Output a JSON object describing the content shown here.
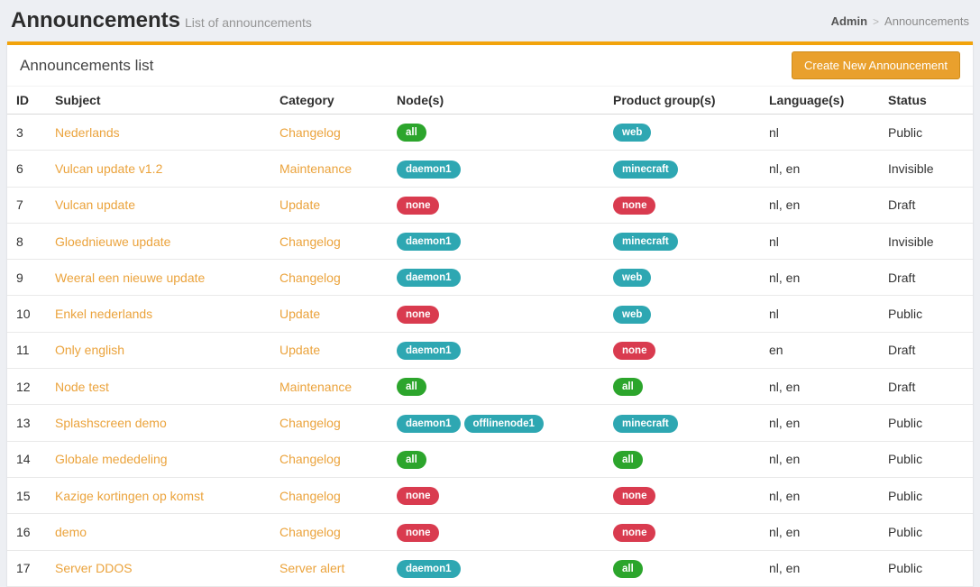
{
  "page": {
    "title": "Announcements",
    "subtitle": "List of announcements",
    "breadcrumb": {
      "root": "Admin",
      "separator": ">",
      "current": "Announcements"
    }
  },
  "panel": {
    "title": "Announcements list",
    "create_button_label": "Create New Announcement"
  },
  "table": {
    "headers": [
      "ID",
      "Subject",
      "Category",
      "Node(s)",
      "Product group(s)",
      "Language(s)",
      "Status"
    ],
    "rows": [
      {
        "id": "3",
        "subject": "Nederlands",
        "category": "Changelog",
        "nodes": [
          {
            "label": "all",
            "color": "green"
          }
        ],
        "product_groups": [
          {
            "label": "web",
            "color": "teal"
          }
        ],
        "languages": "nl",
        "status": "Public"
      },
      {
        "id": "6",
        "subject": "Vulcan update v1.2",
        "category": "Maintenance",
        "nodes": [
          {
            "label": "daemon1",
            "color": "teal"
          }
        ],
        "product_groups": [
          {
            "label": "minecraft",
            "color": "teal"
          }
        ],
        "languages": "nl, en",
        "status": "Invisible"
      },
      {
        "id": "7",
        "subject": "Vulcan update",
        "category": "Update",
        "nodes": [
          {
            "label": "none",
            "color": "red"
          }
        ],
        "product_groups": [
          {
            "label": "none",
            "color": "red"
          }
        ],
        "languages": "nl, en",
        "status": "Draft"
      },
      {
        "id": "8",
        "subject": "Gloednieuwe update",
        "category": "Changelog",
        "nodes": [
          {
            "label": "daemon1",
            "color": "teal"
          }
        ],
        "product_groups": [
          {
            "label": "minecraft",
            "color": "teal"
          }
        ],
        "languages": "nl",
        "status": "Invisible"
      },
      {
        "id": "9",
        "subject": "Weeral een nieuwe update",
        "category": "Changelog",
        "nodes": [
          {
            "label": "daemon1",
            "color": "teal"
          }
        ],
        "product_groups": [
          {
            "label": "web",
            "color": "teal"
          }
        ],
        "languages": "nl, en",
        "status": "Draft"
      },
      {
        "id": "10",
        "subject": "Enkel nederlands",
        "category": "Update",
        "nodes": [
          {
            "label": "none",
            "color": "red"
          }
        ],
        "product_groups": [
          {
            "label": "web",
            "color": "teal"
          }
        ],
        "languages": "nl",
        "status": "Public"
      },
      {
        "id": "11",
        "subject": "Only english",
        "category": "Update",
        "nodes": [
          {
            "label": "daemon1",
            "color": "teal"
          }
        ],
        "product_groups": [
          {
            "label": "none",
            "color": "red"
          }
        ],
        "languages": "en",
        "status": "Draft"
      },
      {
        "id": "12",
        "subject": "Node test",
        "category": "Maintenance",
        "nodes": [
          {
            "label": "all",
            "color": "green"
          }
        ],
        "product_groups": [
          {
            "label": "all",
            "color": "green"
          }
        ],
        "languages": "nl, en",
        "status": "Draft"
      },
      {
        "id": "13",
        "subject": "Splashscreen demo",
        "category": "Changelog",
        "nodes": [
          {
            "label": "daemon1",
            "color": "teal"
          },
          {
            "label": "offlinenode1",
            "color": "teal"
          }
        ],
        "product_groups": [
          {
            "label": "minecraft",
            "color": "teal"
          }
        ],
        "languages": "nl, en",
        "status": "Public"
      },
      {
        "id": "14",
        "subject": "Globale mededeling",
        "category": "Changelog",
        "nodes": [
          {
            "label": "all",
            "color": "green"
          }
        ],
        "product_groups": [
          {
            "label": "all",
            "color": "green"
          }
        ],
        "languages": "nl, en",
        "status": "Public"
      },
      {
        "id": "15",
        "subject": "Kazige kortingen op komst",
        "category": "Changelog",
        "nodes": [
          {
            "label": "none",
            "color": "red"
          }
        ],
        "product_groups": [
          {
            "label": "none",
            "color": "red"
          }
        ],
        "languages": "nl, en",
        "status": "Public"
      },
      {
        "id": "16",
        "subject": "demo",
        "category": "Changelog",
        "nodes": [
          {
            "label": "none",
            "color": "red"
          }
        ],
        "product_groups": [
          {
            "label": "none",
            "color": "red"
          }
        ],
        "languages": "nl, en",
        "status": "Public"
      },
      {
        "id": "17",
        "subject": "Server DDOS",
        "category": "Server alert",
        "nodes": [
          {
            "label": "daemon1",
            "color": "teal"
          }
        ],
        "product_groups": [
          {
            "label": "all",
            "color": "green"
          }
        ],
        "languages": "nl, en",
        "status": "Public"
      }
    ]
  },
  "colors": {
    "accent_orange": "#f2a30b",
    "button_orange": "#e9a02d",
    "button_border": "#cf8c1a",
    "link_orange": "#eba33c",
    "badge_green": "#2ca52c",
    "badge_teal": "#2ea7b2",
    "badge_red": "#d93b4f"
  }
}
